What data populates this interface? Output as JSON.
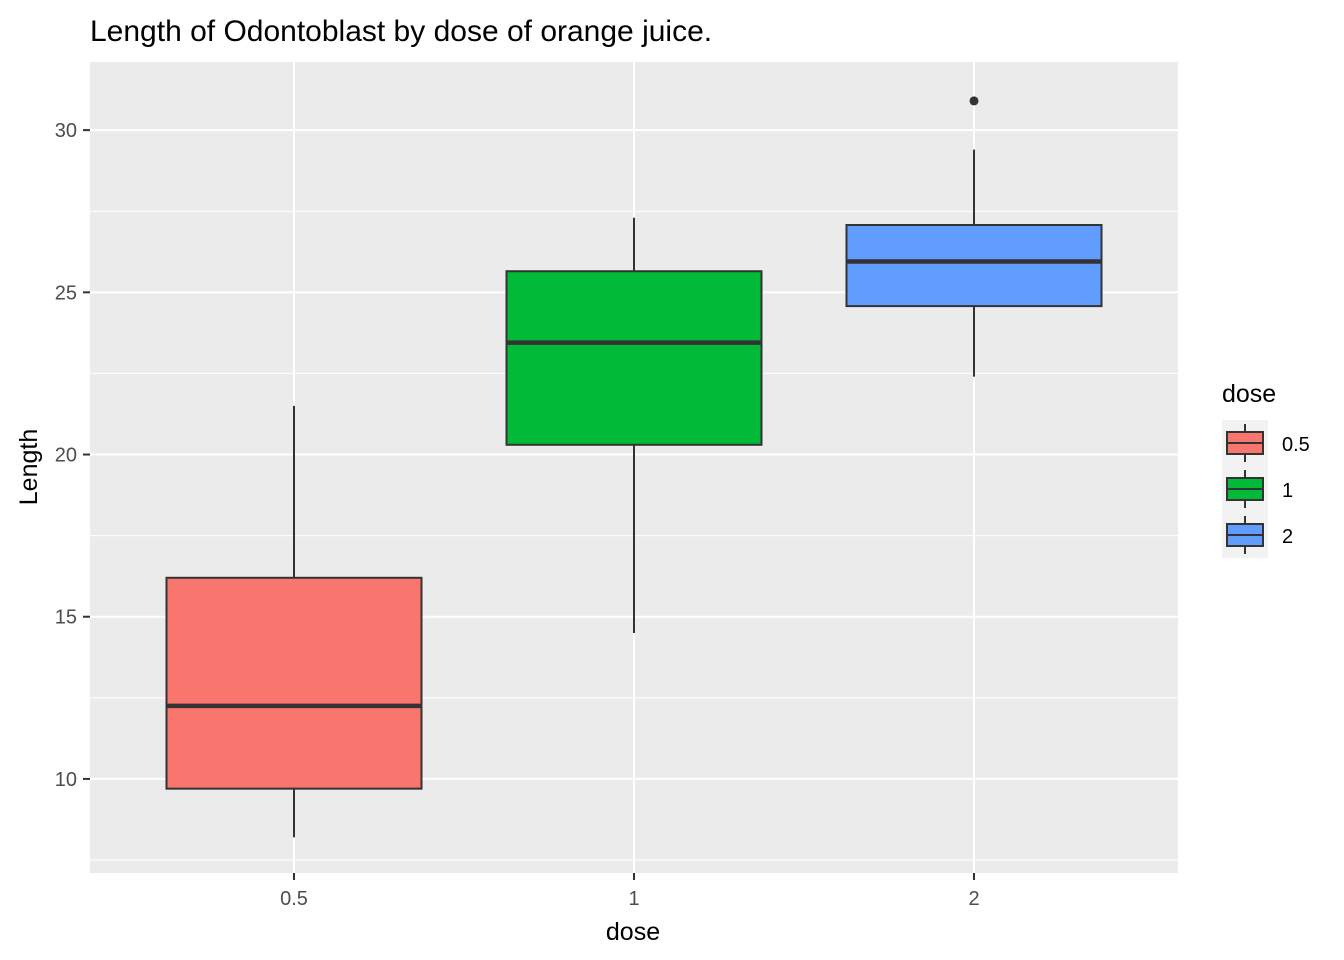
{
  "chart_data": {
    "type": "box",
    "title": "Length of Odontoblast by dose of orange juice.",
    "xlabel": "dose",
    "ylabel": "Length",
    "ylim": [
      7.1,
      32.1
    ],
    "yticks": [
      10,
      15,
      20,
      25,
      30
    ],
    "categories": [
      "0.5",
      "1",
      "2"
    ],
    "boxes": [
      {
        "category": "0.5",
        "whisker_low": 8.2,
        "q1": 9.7,
        "median": 12.25,
        "q3": 16.2,
        "whisker_high": 21.5,
        "outliers": [],
        "color": "#F8766D"
      },
      {
        "category": "1",
        "whisker_low": 14.5,
        "q1": 20.3,
        "median": 23.45,
        "q3": 25.65,
        "whisker_high": 27.3,
        "outliers": [],
        "color": "#00BA38"
      },
      {
        "category": "2",
        "whisker_low": 22.4,
        "q1": 24.575,
        "median": 25.95,
        "q3": 27.075,
        "whisker_high": 29.4,
        "outliers": [
          30.9
        ],
        "color": "#619CFF"
      }
    ],
    "legend": {
      "title": "dose",
      "position": "right",
      "entries": [
        {
          "label": "0.5",
          "color": "#F8766D"
        },
        {
          "label": "1",
          "color": "#00BA38"
        },
        {
          "label": "2",
          "color": "#619CFF"
        }
      ]
    },
    "grid": true,
    "panel_background": "#EBEBEB",
    "grid_color": "#FFFFFF"
  }
}
